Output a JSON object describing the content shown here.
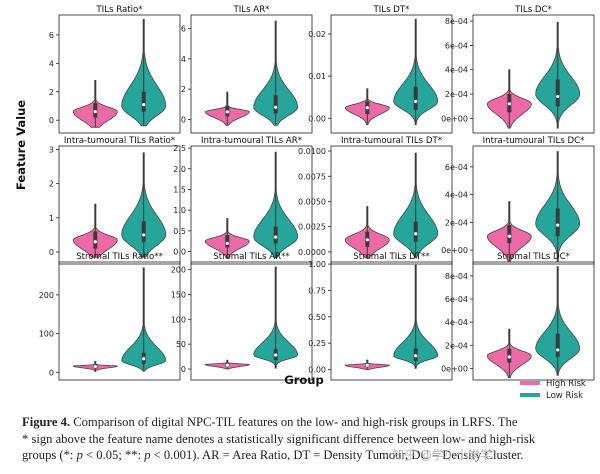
{
  "figure": {
    "y_axis_label": "Feature Value",
    "x_axis_label": "Group",
    "legend": [
      {
        "label": "High Risk",
        "color": "#ee6aa7"
      },
      {
        "label": "Low Risk",
        "color": "#26a69a"
      }
    ]
  },
  "caption": {
    "label": "Figure 4.",
    "text1": " Comparison of digital NPC-TIL features on the low- and high-risk groups in LRFS. The",
    "text2": "* sign above the feature name denotes a statistically significant difference between low- and high-risk",
    "text3a": "groups (*: ",
    "text3b": "p",
    "text3c": " < 0.05; **: ",
    "text3d": "p",
    "text3e": " < 0.001). AR = Area Ratio, DT = Density Tumour, DC = Density Cluster."
  },
  "watermark": "知乎 @学小小学学",
  "chart_data": [
    {
      "type": "violin",
      "title": "TILs Ratio*",
      "ylim": [
        -0.9,
        7.4
      ],
      "yticks": [
        0,
        2,
        4,
        6
      ],
      "tick_labels": [
        "0",
        "2",
        "4",
        "6"
      ],
      "series": [
        {
          "name": "High Risk",
          "color": "#ee6aa7",
          "min": -0.5,
          "max": 2.8,
          "median": 0.6,
          "q1": 0.2,
          "q3": 1.2,
          "mode": 0.6,
          "spread": 0.8,
          "skew": 0.4
        },
        {
          "name": "Low Risk",
          "color": "#26a69a",
          "min": -0.4,
          "max": 7.1,
          "median": 1.1,
          "q1": 0.6,
          "q3": 2.0,
          "mode": 1.0,
          "spread": 0.9,
          "skew": 1.6
        }
      ]
    },
    {
      "type": "violin",
      "title": "TILs AR*",
      "ylim": [
        -0.9,
        6.9
      ],
      "yticks": [
        0,
        2,
        4,
        6
      ],
      "tick_labels": [
        "0",
        "2",
        "4",
        "6"
      ],
      "series": [
        {
          "name": "High Risk",
          "color": "#ee6aa7",
          "min": -0.4,
          "max": 1.8,
          "median": 0.5,
          "q1": 0.2,
          "q3": 0.9,
          "mode": 0.5,
          "spread": 0.5,
          "skew": 0.3
        },
        {
          "name": "Low Risk",
          "color": "#26a69a",
          "min": -0.4,
          "max": 6.5,
          "median": 0.8,
          "q1": 0.4,
          "q3": 1.6,
          "mode": 0.8,
          "spread": 0.7,
          "skew": 1.6
        }
      ]
    },
    {
      "type": "violin",
      "title": "TILs DT*",
      "ylim": [
        -0.0035,
        0.0245
      ],
      "yticks": [
        0,
        0.01,
        0.02
      ],
      "tick_labels": [
        "0.00",
        "0.01",
        "0.02"
      ],
      "series": [
        {
          "name": "High Risk",
          "color": "#ee6aa7",
          "min": -0.0015,
          "max": 0.007,
          "median": 0.0025,
          "q1": 0.001,
          "q3": 0.004,
          "mode": 0.0025,
          "spread": 0.002,
          "skew": 0.4
        },
        {
          "name": "Low Risk",
          "color": "#26a69a",
          "min": -0.0015,
          "max": 0.0235,
          "median": 0.004,
          "q1": 0.002,
          "q3": 0.0075,
          "mode": 0.004,
          "spread": 0.0025,
          "skew": 1.6
        }
      ]
    },
    {
      "type": "violin",
      "title": "TILs DC*",
      "ylim": [
        -0.00012,
        0.00085
      ],
      "yticks": [
        0,
        0.0002,
        0.0004,
        0.0006,
        0.0008
      ],
      "tick_labels": [
        "0e+00",
        "2e-04",
        "4e-04",
        "6e-04",
        "8e-04"
      ],
      "series": [
        {
          "name": "High Risk",
          "color": "#ee6aa7",
          "min": -8e-05,
          "max": 0.0004,
          "median": 0.00012,
          "q1": 5e-05,
          "q3": 0.0002,
          "mode": 0.00012,
          "spread": 0.00011,
          "skew": 0.4
        },
        {
          "name": "Low Risk",
          "color": "#26a69a",
          "min": -8e-05,
          "max": 0.00079,
          "median": 0.00018,
          "q1": 0.0001,
          "q3": 0.00032,
          "mode": 0.0002,
          "spread": 0.00012,
          "skew": 1.2
        }
      ]
    },
    {
      "type": "violin",
      "title": "Intra-tumoural TILs Ratio*",
      "ylim": [
        -0.35,
        3.1
      ],
      "yticks": [
        0,
        1,
        2,
        3
      ],
      "tick_labels": [
        "0",
        "1",
        "2",
        "3"
      ],
      "series": [
        {
          "name": "High Risk",
          "color": "#ee6aa7",
          "min": -0.15,
          "max": 1.4,
          "median": 0.3,
          "q1": 0.1,
          "q3": 0.6,
          "mode": 0.35,
          "spread": 0.35,
          "skew": 0.4
        },
        {
          "name": "Low Risk",
          "color": "#26a69a",
          "min": -0.15,
          "max": 2.9,
          "median": 0.5,
          "q1": 0.3,
          "q3": 0.9,
          "mode": 0.5,
          "spread": 0.4,
          "skew": 1.4
        }
      ]
    },
    {
      "type": "violin",
      "title": "Intra-tumoural TILs AR*",
      "ylim": [
        -0.3,
        2.55
      ],
      "yticks": [
        0,
        0.5,
        1.0,
        1.5,
        2.0,
        2.5
      ],
      "tick_labels": [
        "0.0",
        "0.5",
        "1.0",
        "1.5",
        "2.0",
        "2.5"
      ],
      "series": [
        {
          "name": "High Risk",
          "color": "#ee6aa7",
          "min": -0.15,
          "max": 0.8,
          "median": 0.2,
          "q1": 0.1,
          "q3": 0.4,
          "mode": 0.25,
          "spread": 0.22,
          "skew": 0.4
        },
        {
          "name": "Low Risk",
          "color": "#26a69a",
          "min": -0.15,
          "max": 2.4,
          "median": 0.35,
          "q1": 0.2,
          "q3": 0.6,
          "mode": 0.35,
          "spread": 0.28,
          "skew": 1.5
        }
      ]
    },
    {
      "type": "violin",
      "title": "Intra-tumoural TILs DT*",
      "ylim": [
        -0.0012,
        0.0105
      ],
      "yticks": [
        0,
        0.0025,
        0.005,
        0.0075,
        0.01
      ],
      "tick_labels": [
        "0.0000",
        "0.0025",
        "0.0050",
        "0.0075",
        "0.0100"
      ],
      "series": [
        {
          "name": "High Risk",
          "color": "#ee6aa7",
          "min": -0.0006,
          "max": 0.0045,
          "median": 0.0012,
          "q1": 0.0005,
          "q3": 0.002,
          "mode": 0.0012,
          "spread": 0.0011,
          "skew": 0.5
        },
        {
          "name": "Low Risk",
          "color": "#26a69a",
          "min": -0.0006,
          "max": 0.0098,
          "median": 0.0018,
          "q1": 0.001,
          "q3": 0.003,
          "mode": 0.0018,
          "spread": 0.0013,
          "skew": 1.4
        }
      ]
    },
    {
      "type": "violin",
      "title": "Intra-tumoural TILs DC*",
      "ylim": [
        -0.0001,
        0.00075
      ],
      "yticks": [
        0,
        0.0002,
        0.0004,
        0.0006
      ],
      "tick_labels": [
        "0e+00",
        "2e-04",
        "4e-04",
        "6e-04"
      ],
      "series": [
        {
          "name": "High Risk",
          "color": "#ee6aa7",
          "min": -8e-05,
          "max": 0.00035,
          "median": 0.0001,
          "q1": 5e-05,
          "q3": 0.00018,
          "mode": 0.0001,
          "spread": 0.0001,
          "skew": 0.4
        },
        {
          "name": "Low Risk",
          "color": "#26a69a",
          "min": -8e-05,
          "max": 0.00071,
          "median": 0.00018,
          "q1": 0.0001,
          "q3": 0.0003,
          "mode": 0.00019,
          "spread": 0.00011,
          "skew": 1.2
        }
      ]
    },
    {
      "type": "violin",
      "title": "Stromal TILs Ratio**",
      "ylim": [
        -20,
        285
      ],
      "yticks": [
        0,
        100,
        200
      ],
      "tick_labels": [
        "0",
        "100",
        "200"
      ],
      "series": [
        {
          "name": "High Risk",
          "color": "#ee6aa7",
          "min": 2,
          "max": 28,
          "median": 15,
          "q1": 10,
          "q3": 20,
          "mode": 16,
          "spread": 6,
          "skew": 0.3
        },
        {
          "name": "Low Risk",
          "color": "#26a69a",
          "min": 3,
          "max": 270,
          "median": 35,
          "q1": 22,
          "q3": 50,
          "mode": 30,
          "spread": 14,
          "skew": 2.5
        }
      ]
    },
    {
      "type": "violin",
      "title": "Stromal TILs AR**",
      "ylim": [
        -22,
        215
      ],
      "yticks": [
        0,
        50,
        100,
        150,
        200
      ],
      "tick_labels": [
        "0",
        "50",
        "100",
        "150",
        "200"
      ],
      "series": [
        {
          "name": "High Risk",
          "color": "#ee6aa7",
          "min": 0,
          "max": 18,
          "median": 8,
          "q1": 5,
          "q3": 12,
          "mode": 9,
          "spread": 5,
          "skew": 0.3
        },
        {
          "name": "Low Risk",
          "color": "#26a69a",
          "min": 2,
          "max": 205,
          "median": 28,
          "q1": 18,
          "q3": 40,
          "mode": 28,
          "spread": 10,
          "skew": 2.5
        }
      ]
    },
    {
      "type": "violin",
      "title": "Stromal TILs DT**",
      "ylim": [
        -0.1,
        1.02
      ],
      "yticks": [
        0,
        0.25,
        0.5,
        0.75,
        1.0
      ],
      "tick_labels": [
        "0.00",
        "0.25",
        "0.50",
        "0.75",
        "1.00"
      ],
      "series": [
        {
          "name": "High Risk",
          "color": "#ee6aa7",
          "min": 0.0,
          "max": 0.09,
          "median": 0.04,
          "q1": 0.025,
          "q3": 0.055,
          "mode": 0.04,
          "spread": 0.025,
          "skew": 0.3
        },
        {
          "name": "Low Risk",
          "color": "#26a69a",
          "min": 0.01,
          "max": 0.99,
          "median": 0.13,
          "q1": 0.08,
          "q3": 0.2,
          "mode": 0.13,
          "spread": 0.05,
          "skew": 2.5
        }
      ]
    },
    {
      "type": "violin",
      "title": "Stromal TILs DC*",
      "ylim": [
        -0.0001,
        0.00092
      ],
      "yticks": [
        0,
        0.0002,
        0.0004,
        0.0006,
        0.0008
      ],
      "tick_labels": [
        "0e+00",
        "2e-04",
        "4e-04",
        "6e-04",
        "8e-04"
      ],
      "series": [
        {
          "name": "High Risk",
          "color": "#ee6aa7",
          "min": -8e-05,
          "max": 0.00034,
          "median": 0.0001,
          "q1": 5e-05,
          "q3": 0.00017,
          "mode": 0.00011,
          "spread": 0.0001,
          "skew": 0.4
        },
        {
          "name": "Low Risk",
          "color": "#26a69a",
          "min": -6e-05,
          "max": 0.00088,
          "median": 0.00016,
          "q1": 0.0001,
          "q3": 0.0003,
          "mode": 0.00017,
          "spread": 0.00011,
          "skew": 1.3
        }
      ]
    }
  ]
}
